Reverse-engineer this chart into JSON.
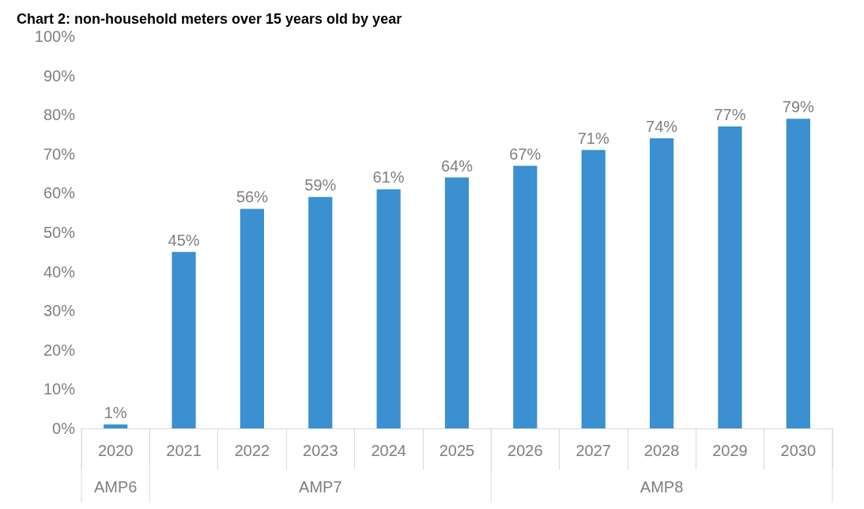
{
  "chart_data": {
    "type": "bar",
    "title": "Chart 2: non-household meters over 15 years old by year",
    "categories": [
      "2020",
      "2021",
      "2022",
      "2023",
      "2024",
      "2025",
      "2026",
      "2027",
      "2028",
      "2029",
      "2030"
    ],
    "values": [
      1,
      45,
      56,
      59,
      61,
      64,
      67,
      71,
      74,
      77,
      79
    ],
    "value_labels": [
      "1%",
      "45%",
      "56%",
      "59%",
      "61%",
      "64%",
      "67%",
      "71%",
      "74%",
      "77%",
      "79%"
    ],
    "color": "#3a90d0",
    "ylim": [
      0,
      100
    ],
    "yticks": [
      {
        "value": 0,
        "label": "0%"
      },
      {
        "value": 10,
        "label": "10%"
      },
      {
        "value": 20,
        "label": "20%"
      },
      {
        "value": 30,
        "label": "30%"
      },
      {
        "value": 40,
        "label": "40%"
      },
      {
        "value": 50,
        "label": "50%"
      },
      {
        "value": 60,
        "label": "60%"
      },
      {
        "value": 70,
        "label": "70%"
      },
      {
        "value": 80,
        "label": "80%"
      },
      {
        "value": 90,
        "label": "90%"
      },
      {
        "value": 100,
        "label": "100%"
      }
    ],
    "annotations": [
      "AMP6",
      "AMP7",
      "AMP8"
    ],
    "grid": false
  }
}
